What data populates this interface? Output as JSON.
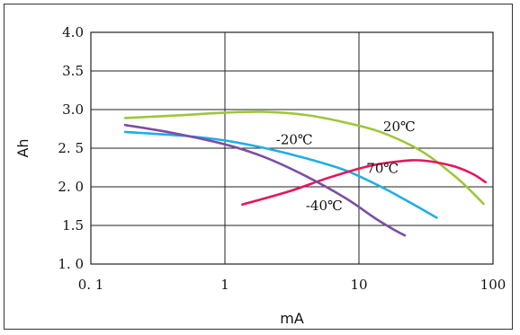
{
  "chart_data": {
    "type": "line",
    "xscale": "log",
    "xlim": [
      0.1,
      100
    ],
    "ylim": [
      1.0,
      4.0
    ],
    "xlabel": "mA",
    "ylabel": "Ah",
    "grid": true,
    "xticks": [
      {
        "value": 0.1,
        "label": "0. 1"
      },
      {
        "value": 1,
        "label": "1"
      },
      {
        "value": 10,
        "label": "10"
      },
      {
        "value": 100,
        "label": "100"
      }
    ],
    "yticks": [
      {
        "value": 1.0,
        "label": "1. 0"
      },
      {
        "value": 1.5,
        "label": "1.5"
      },
      {
        "value": 2.0,
        "label": "2. 0"
      },
      {
        "value": 2.5,
        "label": "2. 5"
      },
      {
        "value": 3.0,
        "label": "3.0"
      },
      {
        "value": 3.5,
        "label": "3.5"
      },
      {
        "value": 4.0,
        "label": "4.0"
      }
    ],
    "series": [
      {
        "name": "20℃",
        "color": "#9dc63a",
        "x": [
          0.18,
          0.5,
          1.0,
          2.0,
          4.0,
          8.0,
          15.0,
          30.0,
          55.0,
          85.0
        ],
        "y": [
          2.89,
          2.93,
          2.96,
          2.97,
          2.93,
          2.83,
          2.7,
          2.45,
          2.1,
          1.78
        ],
        "label_at": [
          20.0,
          2.72
        ]
      },
      {
        "name": "-20℃",
        "color": "#1eaee6",
        "x": [
          0.18,
          0.5,
          1.0,
          2.0,
          4.0,
          8.0,
          15.0,
          25.0,
          38.0
        ],
        "y": [
          2.71,
          2.66,
          2.6,
          2.5,
          2.37,
          2.21,
          1.99,
          1.78,
          1.6
        ],
        "label_at": [
          3.3,
          2.55
        ]
      },
      {
        "name": "70℃",
        "color": "#e3175a",
        "x": [
          1.35,
          3.0,
          6.0,
          12.0,
          20.0,
          30.0,
          50.0,
          70.0,
          88.0
        ],
        "y": [
          1.77,
          1.94,
          2.12,
          2.27,
          2.33,
          2.34,
          2.27,
          2.17,
          2.06
        ],
        "label_at": [
          15.0,
          2.18
        ]
      },
      {
        "name": "-40℃",
        "color": "#7b4ea4",
        "x": [
          0.18,
          0.4,
          1.0,
          2.0,
          4.0,
          8.0,
          13.0,
          18.0,
          22.0
        ],
        "y": [
          2.8,
          2.7,
          2.55,
          2.38,
          2.14,
          1.85,
          1.6,
          1.45,
          1.37
        ],
        "label_at": [
          5.5,
          1.7
        ]
      }
    ]
  }
}
